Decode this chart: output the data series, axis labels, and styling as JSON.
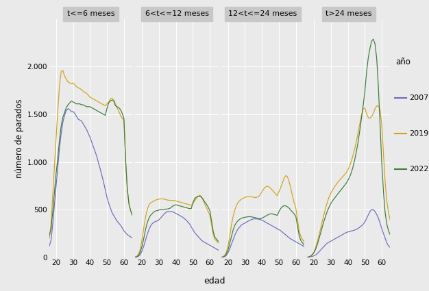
{
  "panels": [
    "t<=6 meses",
    "6<t<=12 meses",
    "12<t<=24 meses",
    "t>24 meses"
  ],
  "years": [
    "2007",
    "2019",
    "2022"
  ],
  "colors": {
    "2007": "#6B6BBF",
    "2019": "#D4A017",
    "2022": "#3A7A3A"
  },
  "ylabel": "número de parados",
  "xlabel": "edad",
  "legend_title": "año",
  "ylim": [
    0,
    2500
  ],
  "yticks": [
    0,
    500,
    1000,
    1500,
    2000
  ],
  "ytick_labels": [
    "0",
    "500",
    "1.000",
    "1.500",
    "2.000"
  ],
  "xlim": [
    16,
    65
  ],
  "xticks": [
    20,
    30,
    40,
    50,
    60
  ],
  "background_color": "#EAEAEA",
  "panel_bg": "#EAEAEA",
  "grid_color": "#FFFFFF",
  "panel_label_bg": "#C8C8C8",
  "data": {
    "t<=6 meses": {
      "ages": [
        16,
        17,
        18,
        19,
        20,
        21,
        22,
        23,
        24,
        25,
        26,
        27,
        28,
        29,
        30,
        31,
        32,
        33,
        34,
        35,
        36,
        37,
        38,
        39,
        40,
        41,
        42,
        43,
        44,
        45,
        46,
        47,
        48,
        49,
        50,
        51,
        52,
        53,
        54,
        55,
        56,
        57,
        58,
        59,
        60,
        61,
        62,
        63,
        64,
        65
      ],
      "2007": [
        120,
        180,
        350,
        550,
        750,
        950,
        1150,
        1300,
        1420,
        1490,
        1540,
        1560,
        1550,
        1530,
        1530,
        1510,
        1480,
        1450,
        1440,
        1430,
        1400,
        1370,
        1340,
        1300,
        1260,
        1210,
        1160,
        1110,
        1060,
        990,
        930,
        860,
        790,
        710,
        630,
        570,
        520,
        470,
        440,
        410,
        380,
        360,
        340,
        310,
        280,
        260,
        240,
        230,
        215,
        210
      ],
      "2019": [
        200,
        350,
        650,
        950,
        1250,
        1550,
        1800,
        1950,
        1960,
        1900,
        1870,
        1840,
        1830,
        1820,
        1830,
        1810,
        1790,
        1780,
        1770,
        1760,
        1740,
        1730,
        1720,
        1700,
        1680,
        1670,
        1660,
        1650,
        1640,
        1630,
        1620,
        1610,
        1600,
        1590,
        1610,
        1630,
        1660,
        1670,
        1650,
        1610,
        1570,
        1530,
        1490,
        1460,
        1440,
        1020,
        720,
        560,
        490,
        450
      ],
      "2022": [
        230,
        300,
        480,
        680,
        880,
        1050,
        1230,
        1380,
        1470,
        1520,
        1570,
        1600,
        1620,
        1640,
        1630,
        1620,
        1610,
        1610,
        1610,
        1600,
        1600,
        1590,
        1580,
        1580,
        1580,
        1570,
        1560,
        1550,
        1540,
        1530,
        1520,
        1510,
        1500,
        1490,
        1560,
        1620,
        1640,
        1650,
        1640,
        1590,
        1580,
        1570,
        1550,
        1510,
        1460,
        1020,
        720,
        560,
        490,
        440
      ]
    },
    "6<t<=12 meses": {
      "ages": [
        16,
        17,
        18,
        19,
        20,
        21,
        22,
        23,
        24,
        25,
        26,
        27,
        28,
        29,
        30,
        31,
        32,
        33,
        34,
        35,
        36,
        37,
        38,
        39,
        40,
        41,
        42,
        43,
        44,
        45,
        46,
        47,
        48,
        49,
        50,
        51,
        52,
        53,
        54,
        55,
        56,
        57,
        58,
        59,
        60,
        61,
        62,
        63,
        64,
        65
      ],
      "2007": [
        5,
        8,
        15,
        30,
        70,
        120,
        180,
        240,
        290,
        330,
        355,
        370,
        378,
        385,
        395,
        415,
        435,
        455,
        472,
        482,
        482,
        482,
        478,
        472,
        462,
        452,
        442,
        432,
        422,
        408,
        392,
        372,
        352,
        322,
        292,
        262,
        242,
        222,
        202,
        182,
        168,
        158,
        148,
        138,
        128,
        118,
        108,
        98,
        88,
        78
      ],
      "2019": [
        8,
        15,
        40,
        90,
        190,
        310,
        420,
        500,
        550,
        572,
        582,
        592,
        602,
        608,
        612,
        615,
        615,
        612,
        608,
        602,
        600,
        598,
        598,
        598,
        592,
        588,
        582,
        578,
        572,
        568,
        562,
        558,
        552,
        548,
        568,
        592,
        618,
        642,
        652,
        642,
        602,
        562,
        522,
        482,
        442,
        342,
        242,
        192,
        172,
        152
      ],
      "2022": [
        4,
        8,
        25,
        60,
        120,
        200,
        290,
        360,
        412,
        442,
        462,
        478,
        488,
        492,
        498,
        502,
        504,
        505,
        508,
        508,
        512,
        522,
        538,
        548,
        552,
        548,
        542,
        538,
        532,
        528,
        522,
        518,
        512,
        512,
        572,
        618,
        632,
        642,
        642,
        632,
        612,
        582,
        558,
        528,
        492,
        382,
        272,
        212,
        192,
        168
      ]
    },
    "12<t<=24 meses": {
      "ages": [
        16,
        17,
        18,
        19,
        20,
        21,
        22,
        23,
        24,
        25,
        26,
        27,
        28,
        29,
        30,
        31,
        32,
        33,
        34,
        35,
        36,
        37,
        38,
        39,
        40,
        41,
        42,
        43,
        44,
        45,
        46,
        47,
        48,
        49,
        50,
        51,
        52,
        53,
        54,
        55,
        56,
        57,
        58,
        59,
        60,
        61,
        62,
        63,
        64,
        65
      ],
      "2007": [
        3,
        5,
        10,
        22,
        50,
        90,
        140,
        185,
        235,
        272,
        302,
        322,
        342,
        352,
        362,
        372,
        382,
        392,
        398,
        405,
        405,
        405,
        402,
        398,
        392,
        382,
        372,
        362,
        352,
        342,
        332,
        322,
        312,
        302,
        292,
        282,
        268,
        252,
        238,
        222,
        208,
        195,
        185,
        175,
        165,
        155,
        145,
        135,
        125,
        115
      ],
      "2019": [
        4,
        8,
        22,
        55,
        120,
        220,
        340,
        428,
        498,
        548,
        578,
        598,
        612,
        622,
        632,
        635,
        638,
        638,
        636,
        632,
        628,
        632,
        638,
        658,
        688,
        718,
        738,
        748,
        742,
        728,
        708,
        688,
        668,
        648,
        688,
        728,
        778,
        828,
        858,
        848,
        798,
        728,
        648,
        578,
        518,
        398,
        278,
        218,
        188,
        162
      ],
      "2022": [
        3,
        6,
        15,
        38,
        78,
        148,
        218,
        288,
        338,
        368,
        388,
        402,
        412,
        418,
        422,
        425,
        428,
        428,
        425,
        422,
        418,
        412,
        408,
        408,
        412,
        422,
        432,
        442,
        452,
        458,
        458,
        452,
        448,
        442,
        478,
        512,
        532,
        542,
        542,
        532,
        518,
        498,
        478,
        458,
        432,
        328,
        228,
        178,
        152,
        132
      ]
    },
    "t>24 meses": {
      "ages": [
        16,
        17,
        18,
        19,
        20,
        21,
        22,
        23,
        24,
        25,
        26,
        27,
        28,
        29,
        30,
        31,
        32,
        33,
        34,
        35,
        36,
        37,
        38,
        39,
        40,
        41,
        42,
        43,
        44,
        45,
        46,
        47,
        48,
        49,
        50,
        51,
        52,
        53,
        54,
        55,
        56,
        57,
        58,
        59,
        60,
        61,
        62,
        63,
        64,
        65
      ],
      "2007": [
        3,
        5,
        8,
        12,
        18,
        28,
        42,
        60,
        80,
        100,
        118,
        138,
        152,
        162,
        172,
        182,
        192,
        202,
        212,
        222,
        232,
        242,
        252,
        262,
        268,
        272,
        278,
        282,
        288,
        295,
        305,
        318,
        332,
        348,
        372,
        408,
        445,
        482,
        502,
        502,
        482,
        452,
        412,
        362,
        302,
        252,
        202,
        152,
        122,
        105
      ],
      "2019": [
        3,
        8,
        15,
        32,
        58,
        108,
        168,
        238,
        308,
        388,
        458,
        528,
        588,
        638,
        678,
        708,
        738,
        762,
        788,
        808,
        828,
        848,
        868,
        888,
        918,
        958,
        1008,
        1068,
        1138,
        1218,
        1308,
        1398,
        1488,
        1558,
        1568,
        1508,
        1468,
        1458,
        1478,
        1508,
        1558,
        1588,
        1588,
        1548,
        1388,
        1088,
        788,
        588,
        468,
        388
      ],
      "2022": [
        3,
        8,
        15,
        28,
        52,
        88,
        138,
        198,
        262,
        328,
        388,
        442,
        492,
        532,
        568,
        595,
        618,
        642,
        665,
        688,
        710,
        732,
        755,
        778,
        808,
        842,
        888,
        948,
        1022,
        1108,
        1208,
        1328,
        1458,
        1588,
        1738,
        1938,
        2088,
        2188,
        2268,
        2288,
        2238,
        2088,
        1788,
        1388,
        988,
        688,
        468,
        348,
        278,
        238
      ]
    }
  }
}
